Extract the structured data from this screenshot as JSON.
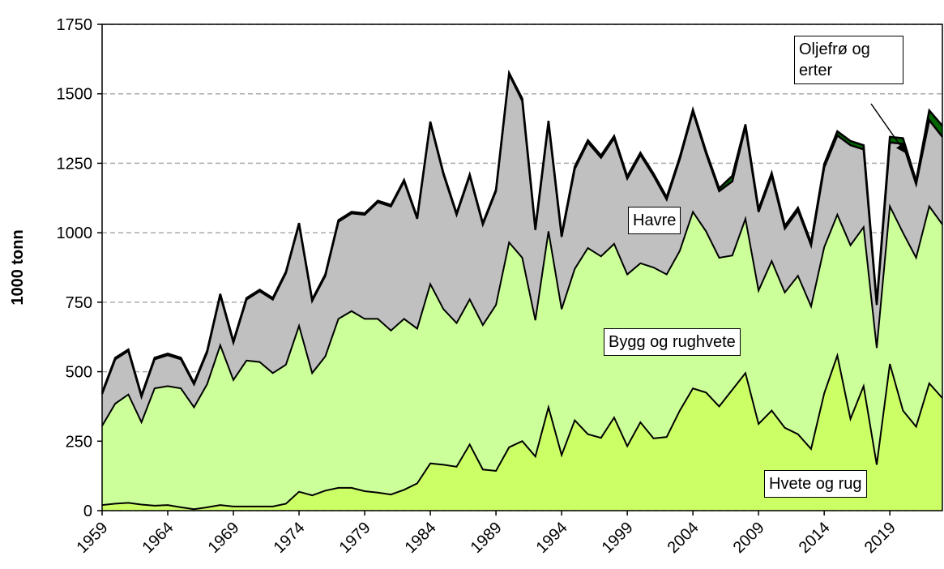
{
  "chart_data": {
    "type": "stacked_area",
    "ylabel": "1000 tonn",
    "x": [
      1959,
      1960,
      1961,
      1962,
      1963,
      1964,
      1965,
      1966,
      1967,
      1968,
      1969,
      1970,
      1971,
      1972,
      1973,
      1974,
      1975,
      1976,
      1977,
      1978,
      1979,
      1980,
      1981,
      1982,
      1983,
      1984,
      1985,
      1986,
      1987,
      1988,
      1989,
      1990,
      1991,
      1992,
      1993,
      1994,
      1995,
      1996,
      1997,
      1998,
      1999,
      2000,
      2001,
      2002,
      2003,
      2004,
      2005,
      2006,
      2007,
      2008,
      2009,
      2010,
      2011,
      2012,
      2013,
      2014,
      2015,
      2016,
      2017,
      2018,
      2019,
      2020,
      2021,
      2022,
      2023
    ],
    "xlim": [
      1959,
      2023
    ],
    "xticks": [
      1959,
      1964,
      1969,
      1974,
      1979,
      1984,
      1989,
      1994,
      1999,
      2004,
      2009,
      2014,
      2019
    ],
    "ylim": [
      0,
      1750
    ],
    "yticks": [
      0,
      250,
      500,
      750,
      1000,
      1250,
      1500,
      1750
    ],
    "grid": true,
    "series": [
      {
        "name": "Hvete og rug",
        "color": "#ccff66",
        "values": [
          20,
          25,
          28,
          22,
          18,
          20,
          12,
          5,
          12,
          20,
          15,
          15,
          15,
          15,
          25,
          68,
          55,
          72,
          82,
          82,
          70,
          65,
          58,
          75,
          98,
          170,
          165,
          158,
          238,
          148,
          143,
          228,
          250,
          195,
          372,
          200,
          325,
          275,
          262,
          335,
          232,
          318,
          260,
          265,
          360,
          440,
          425,
          375,
          435,
          495,
          312,
          360,
          298,
          275,
          222,
          422,
          558,
          330,
          448,
          165,
          528,
          360,
          302,
          458,
          405
        ]
      },
      {
        "name": "Bygg og rughvete",
        "color": "#ccff99",
        "values": [
          285,
          360,
          390,
          296,
          422,
          428,
          428,
          367,
          443,
          575,
          455,
          525,
          520,
          480,
          500,
          597,
          440,
          483,
          608,
          636,
          620,
          625,
          590,
          615,
          557,
          645,
          560,
          517,
          522,
          520,
          597,
          737,
          660,
          490,
          633,
          525,
          545,
          670,
          653,
          625,
          618,
          572,
          615,
          585,
          575,
          635,
          580,
          535,
          483,
          555,
          480,
          538,
          487,
          570,
          513,
          526,
          507,
          625,
          572,
          420,
          567,
          640,
          608,
          637,
          625
        ]
      },
      {
        "name": "Havre",
        "color": "#c0c0c0",
        "values": [
          115,
          160,
          157,
          92,
          105,
          112,
          105,
          83,
          115,
          180,
          135,
          220,
          255,
          265,
          330,
          365,
          260,
          290,
          350,
          352,
          375,
          420,
          447,
          495,
          395,
          580,
          485,
          390,
          445,
          362,
          410,
          605,
          565,
          325,
          390,
          260,
          360,
          380,
          355,
          380,
          345,
          390,
          330,
          270,
          330,
          360,
          280,
          240,
          267,
          330,
          283,
          307,
          230,
          235,
          220,
          287,
          285,
          360,
          280,
          155,
          230,
          320,
          265,
          310,
          315
        ]
      },
      {
        "name": "Oljefrø og erter",
        "color": "#006600",
        "values": [
          5,
          5,
          5,
          5,
          5,
          5,
          5,
          5,
          5,
          5,
          5,
          5,
          5,
          5,
          5,
          5,
          5,
          5,
          5,
          5,
          5,
          5,
          5,
          5,
          5,
          5,
          5,
          5,
          5,
          5,
          5,
          5,
          8,
          8,
          8,
          8,
          8,
          8,
          8,
          8,
          8,
          8,
          8,
          8,
          8,
          8,
          8,
          10,
          20,
          10,
          10,
          10,
          10,
          10,
          10,
          12,
          15,
          15,
          15,
          8,
          20,
          20,
          12,
          35,
          40
        ]
      }
    ]
  }
}
